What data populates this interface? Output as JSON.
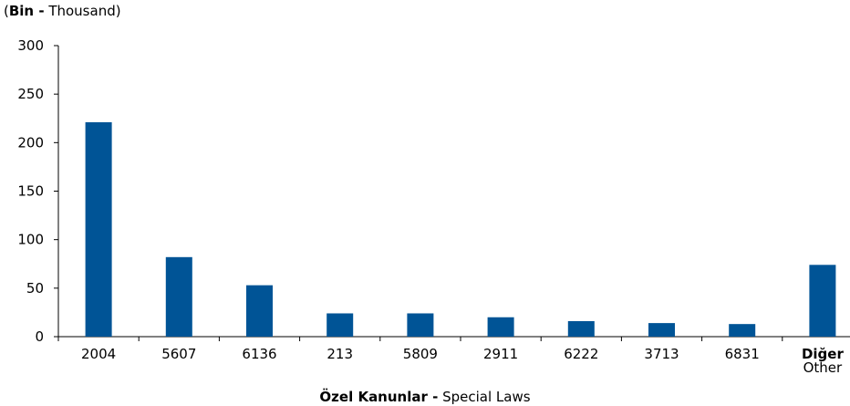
{
  "unit_label": {
    "prefix": "(",
    "bold": "Bin -",
    "rest": " Thousand)"
  },
  "x_axis_title": {
    "bold": "Özel Kanunlar -",
    "rest": " Special Laws"
  },
  "colors": {
    "bar": "#005496",
    "axis": "#000000"
  },
  "chart_data": {
    "type": "bar",
    "title": "",
    "ylabel": "(Bin - Thousand)",
    "xlabel": "Özel Kanunlar - Special Laws",
    "ylim": [
      0,
      300
    ],
    "yticks": [
      0,
      50,
      100,
      150,
      200,
      250,
      300
    ],
    "grid": false,
    "categories": [
      "2004",
      "5607",
      "6136",
      "213",
      "5809",
      "2911",
      "6222",
      "3713",
      "6831",
      "Diğer Other"
    ],
    "category_labels": [
      {
        "line1": "2004"
      },
      {
        "line1": "5607"
      },
      {
        "line1": "6136"
      },
      {
        "line1": "213"
      },
      {
        "line1": "5809"
      },
      {
        "line1": "2911"
      },
      {
        "line1": "6222"
      },
      {
        "line1": "3713"
      },
      {
        "line1": "6831"
      },
      {
        "line1": "Diğer",
        "line2": "Other",
        "bold_line1": true
      }
    ],
    "values": [
      221,
      82,
      53,
      24,
      24,
      20,
      16,
      14,
      13,
      74
    ]
  }
}
